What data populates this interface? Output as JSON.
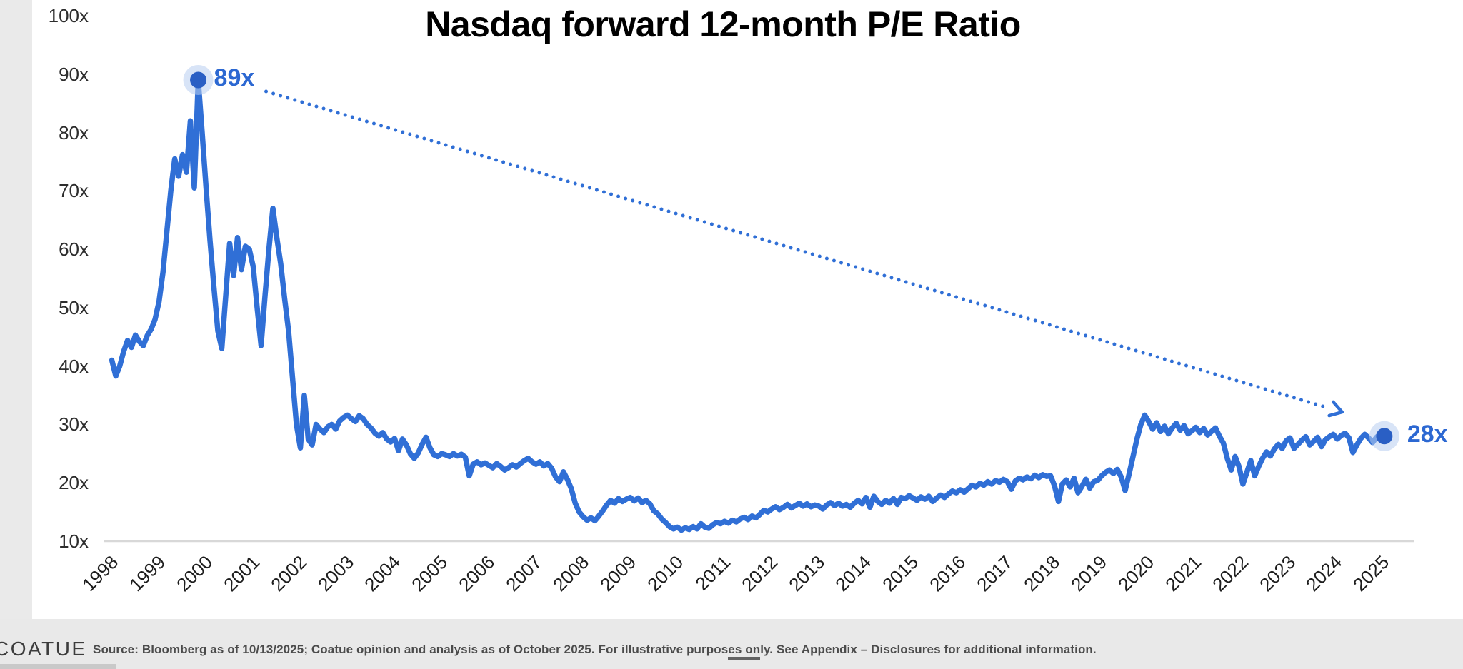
{
  "title": "Nasdaq forward 12-month P/E Ratio",
  "annotations": {
    "peak_label": "89x",
    "end_label": "28x"
  },
  "footer": {
    "logo": "COATUE",
    "source_pre": "Source: Bloomberg as of 10/13/2025; Coatue opinion and analysis as of October 2025. For illustrative purpos",
    "source_underlined": "es on",
    "source_post": "ly. See Appendix – Disclosures for additional information."
  },
  "colors": {
    "line": "#306fd6",
    "marker": "#2a5fc4",
    "halo": "#b8cdf0",
    "axis": "#d8d8d8",
    "annotation_text": "#2c68d2"
  },
  "chart_data": {
    "type": "line",
    "title": "Nasdaq forward 12-month P/E Ratio",
    "series_name": "Nasdaq forward 12-month P/E ratio",
    "x_range": [
      1998.1,
      2025.13
    ],
    "ylim": [
      10,
      100
    ],
    "grid": false,
    "legend": "none",
    "y_tick_labels": [
      "100x",
      "90x",
      "80x",
      "70x",
      "60x",
      "50x",
      "40x",
      "30x",
      "20x",
      "10x"
    ],
    "x_tick_labels": [
      "1998",
      "1999",
      "2000",
      "2001",
      "2002",
      "2003",
      "2004",
      "2005",
      "2006",
      "2007",
      "2008",
      "2009",
      "2010",
      "2011",
      "2012",
      "2013",
      "2014",
      "2015",
      "2016",
      "2017",
      "2018",
      "2019",
      "2020",
      "2021",
      "2022",
      "2023",
      "2024",
      "2025"
    ],
    "peak": {
      "label": "89x",
      "value": 89
    },
    "end": {
      "label": "28x",
      "value": 28
    },
    "values": [
      41,
      38.3,
      40,
      42.5,
      44.4,
      43.2,
      45.3,
      44.2,
      43.5,
      45.2,
      46.3,
      48,
      51,
      56,
      63,
      70,
      75.5,
      72.5,
      76.2,
      73.2,
      82,
      70.5,
      89,
      80,
      70.5,
      61.5,
      53.5,
      46,
      43,
      52,
      61,
      55.5,
      62,
      56.5,
      60.5,
      60,
      57,
      50,
      43.5,
      52,
      60,
      67,
      62,
      57.5,
      51.5,
      46,
      38,
      30,
      26,
      35,
      27.5,
      26.5,
      30,
      29.2,
      28.6,
      29.6,
      30,
      29.2,
      30.6,
      31.2,
      31.6,
      31,
      30.5,
      31.5,
      31,
      30,
      29.4,
      28.5,
      28,
      28.6,
      27.5,
      27,
      27.6,
      25.5,
      27.5,
      26.5,
      25,
      24.2,
      25.1,
      26.6,
      27.8,
      26,
      24.8,
      24.5,
      25,
      24.8,
      24.5,
      25,
      24.6,
      24.9,
      24.4,
      21.2,
      23.2,
      23.6,
      23.1,
      23.4,
      23,
      22.6,
      23.3,
      22.8,
      22.2,
      22.6,
      23.1,
      22.7,
      23.3,
      23.8,
      24.2,
      23.6,
      23.2,
      23.6,
      22.9,
      23.3,
      22.5,
      21,
      20.2,
      21.9,
      20.6,
      19,
      16.5,
      15,
      14.2,
      13.6,
      14,
      13.5,
      14.3,
      15.2,
      16.2,
      17,
      16.5,
      17.3,
      16.8,
      17.2,
      17.5,
      16.9,
      17.4,
      16.6,
      17,
      16.4,
      15.2,
      14.7,
      13.8,
      13.2,
      12.5,
      12.1,
      12.4,
      11.9,
      12.3,
      12,
      12.5,
      12.1,
      13,
      12.4,
      12.2,
      12.8,
      13.2,
      13,
      13.4,
      13.1,
      13.6,
      13.3,
      13.8,
      14.1,
      13.7,
      14.3,
      14,
      14.6,
      15.3,
      15,
      15.5,
      15.9,
      15.4,
      15.8,
      16.3,
      15.7,
      16.1,
      16.5,
      16,
      16.4,
      15.9,
      16.2,
      16,
      15.5,
      16.2,
      16.6,
      16.1,
      16.5,
      16,
      16.3,
      15.8,
      16.5,
      17,
      16.4,
      17.5,
      15.8,
      17.7,
      16.8,
      16.3,
      17,
      16.5,
      17.3,
      16.3,
      17.5,
      17.3,
      17.8,
      17.4,
      17,
      17.6,
      17.2,
      17.7,
      16.8,
      17.4,
      17.9,
      17.5,
      18.1,
      18.6,
      18.3,
      18.8,
      18.4,
      19,
      19.6,
      19.3,
      19.9,
      19.6,
      20.2,
      19.8,
      20.4,
      20.1,
      20.6,
      20.2,
      18.9,
      20.3,
      20.8,
      20.5,
      21,
      20.7,
      21.3,
      20.9,
      21.4,
      21.1,
      21.2,
      19.5,
      16.8,
      19.8,
      20.5,
      19.3,
      20.8,
      18.3,
      19.4,
      20.6,
      19.1,
      20.2,
      20.4,
      21.2,
      21.8,
      22.2,
      21.6,
      22.3,
      21,
      18.7,
      21.5,
      24.5,
      27.5,
      30,
      31.6,
      30.5,
      29.2,
      30.3,
      28.8,
      29.7,
      28.4,
      29.4,
      30.2,
      29,
      29.8,
      28.4,
      28.9,
      29.5,
      28.6,
      29.3,
      28.2,
      28.8,
      29.4,
      28,
      26.8,
      24.2,
      22.2,
      24.5,
      22.8,
      19.8,
      21.8,
      23.8,
      21.2,
      22.8,
      24.2,
      25.3,
      24.6,
      25.8,
      26.6,
      25.9,
      27.2,
      27.7,
      25.9,
      26.6,
      27.3,
      27.9,
      26.5,
      27.1,
      27.8,
      26.2,
      27.4,
      27.9,
      28.3,
      27.5,
      28.1,
      28.5,
      27.7,
      25.2,
      26.5,
      27.6,
      28.3,
      27.7,
      26.9,
      27.8,
      28.4,
      28
    ]
  }
}
